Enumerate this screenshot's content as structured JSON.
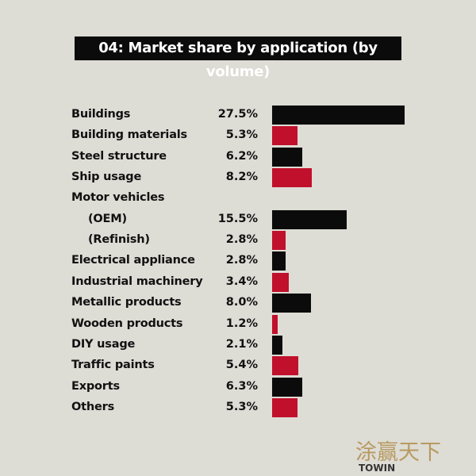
{
  "chart_data": {
    "type": "bar",
    "orientation": "horizontal",
    "title": "04: Market share by application (by volume)",
    "unit": "%",
    "categories": [
      "Buildings",
      "Building materials",
      "Steel structure",
      "Ship usage",
      "Motor vehicles",
      "(OEM)",
      "(Refinish)",
      "Electrical appliance",
      "Industrial machinery",
      "Metallic products",
      "Wooden products",
      "DIY usage",
      "Traffic paints",
      "Exports",
      "Others"
    ],
    "values": [
      27.5,
      5.3,
      6.2,
      8.2,
      null,
      15.5,
      2.8,
      2.8,
      3.4,
      8.0,
      1.2,
      2.1,
      5.4,
      6.3,
      5.3
    ],
    "value_labels": [
      "27.5%",
      "5.3%",
      "6.2%",
      "8.2%",
      "",
      "15.5%",
      "2.8%",
      "2.8%",
      "3.4%",
      "8.0%",
      "1.2%",
      "2.1%",
      "5.4%",
      "6.3%",
      "5.3%"
    ],
    "indented": [
      false,
      false,
      false,
      false,
      false,
      true,
      true,
      false,
      false,
      false,
      false,
      false,
      false,
      false,
      false
    ],
    "colors": {
      "dark": "#0b0b0b",
      "red": "#c0102c"
    },
    "xlim": [
      0,
      27.5
    ]
  },
  "logo": {
    "chinese": "涂赢天下",
    "brand": "TOWIN"
  }
}
